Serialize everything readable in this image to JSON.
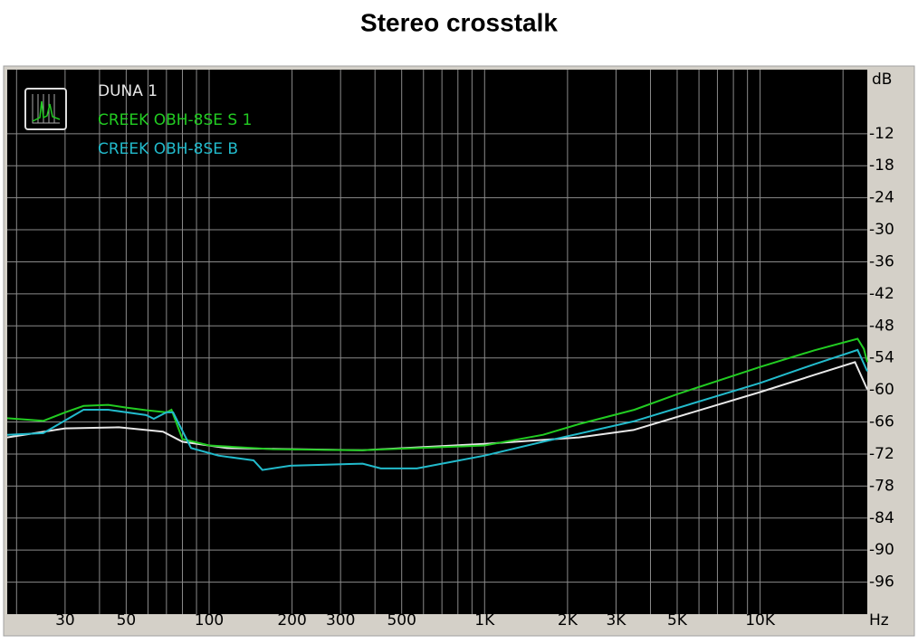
{
  "chart_data": {
    "type": "line",
    "title": "Stereo crosstalk",
    "y_unit": "dB",
    "x_unit": "Hz",
    "log_x": true,
    "grid": true,
    "legend": "top-left",
    "xlim": [
      18.5,
      24500
    ],
    "ylim": [
      -102,
      0
    ],
    "xticks": [
      30,
      50,
      100,
      200,
      300,
      500,
      {
        "value": 1000,
        "label": "1K"
      },
      {
        "value": 2000,
        "label": "2K"
      },
      {
        "value": 3000,
        "label": "3K"
      },
      {
        "value": 5000,
        "label": "5K"
      },
      {
        "value": 10000,
        "label": "10K"
      }
    ],
    "xgrid": [
      20,
      40,
      60,
      70,
      80,
      90,
      400,
      600,
      700,
      800,
      900,
      4000,
      6000,
      7000,
      8000,
      9000,
      20000
    ],
    "yticks": [
      -12,
      -18,
      -24,
      -30,
      -36,
      -42,
      -48,
      -54,
      -60,
      -66,
      -72,
      -78,
      -84,
      -90,
      -96
    ],
    "series": [
      {
        "name": "DUNA 1",
        "color": "#e8e8e8",
        "x": [
          18.5,
          30,
          47,
          68,
          80,
          116,
          361,
          1000,
          2200,
          3470,
          10000,
          15700,
          22100,
          24500
        ],
        "values": [
          -68.9,
          -67.2,
          -67.0,
          -67.8,
          -69.7,
          -70.9,
          -71.3,
          -70.1,
          -68.9,
          -67.5,
          -60.4,
          -57.2,
          -54.8,
          -59.9
        ]
      },
      {
        "name": "CREEK OBH-8SE S 1",
        "color": "#22cc22",
        "x": [
          18.5,
          25,
          30,
          35,
          43,
          50,
          59,
          70,
          73,
          80,
          100,
          170,
          360,
          1000,
          1630,
          2200,
          3500,
          5000,
          10000,
          15700,
          22600,
          23800,
          24500
        ],
        "values": [
          -65.3,
          -65.8,
          -64.2,
          -63.0,
          -62.8,
          -63.3,
          -63.8,
          -64.2,
          -63.7,
          -69.2,
          -70.4,
          -71.1,
          -71.3,
          -70.4,
          -68.4,
          -66.4,
          -63.7,
          -60.8,
          -55.7,
          -52.6,
          -50.4,
          -52.3,
          -54.8
        ]
      },
      {
        "name": "CREEK OBH-8SE B",
        "color": "#22bbcc",
        "x": [
          18.5,
          25,
          35,
          43,
          59,
          63,
          70,
          74,
          86,
          108,
          145,
          156,
          197,
          361,
          420,
          568,
          1000,
          1630,
          3470,
          10000,
          15700,
          22600,
          24500
        ],
        "values": [
          -68.4,
          -68.1,
          -63.7,
          -63.7,
          -64.7,
          -65.4,
          -64.2,
          -64.2,
          -70.9,
          -72.3,
          -73.2,
          -75.0,
          -74.2,
          -73.8,
          -74.7,
          -74.7,
          -72.3,
          -69.7,
          -65.9,
          -58.7,
          -55.2,
          -52.5,
          -56.5
        ]
      }
    ]
  }
}
